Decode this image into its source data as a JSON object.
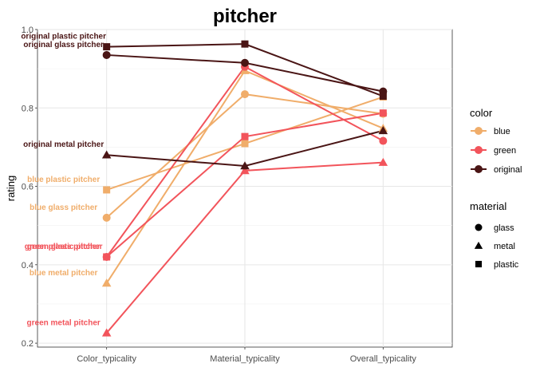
{
  "chart_data": {
    "type": "line",
    "title": "pitcher",
    "xlabel": "",
    "ylabel": "rating",
    "categories": [
      "Color_typicality",
      "Material_typicality",
      "Overall_typicality"
    ],
    "ylim": [
      0.19,
      1.0
    ],
    "yticks": [
      "0.2",
      "0.4",
      "0.6",
      "0.8",
      "1.0"
    ],
    "grid": true,
    "legend_position": "right",
    "colors": {
      "blue": "#F0AD6A",
      "green": "#F2545B",
      "original": "#4A1515"
    },
    "series": [
      {
        "name": "original plastic pitcher",
        "color_group": "original",
        "material": "plastic",
        "label": "original plastic pitcher",
        "values": [
          0.956,
          0.963,
          0.83
        ]
      },
      {
        "name": "original glass pitcher",
        "color_group": "original",
        "material": "glass",
        "label": "original glass pitcher",
        "values": [
          0.935,
          0.915,
          0.842
        ]
      },
      {
        "name": "original metal pitcher",
        "color_group": "original",
        "material": "metal",
        "label": "original metal pitcher",
        "values": [
          0.68,
          0.652,
          0.742
        ]
      },
      {
        "name": "blue plastic pitcher",
        "color_group": "blue",
        "material": "plastic",
        "label": "blue plastic pitcher",
        "values": [
          0.591,
          0.709,
          0.828
        ]
      },
      {
        "name": "blue glass pitcher",
        "color_group": "blue",
        "material": "glass",
        "label": "blue glass pitcher",
        "values": [
          0.52,
          0.835,
          0.785
        ]
      },
      {
        "name": "blue metal pitcher",
        "color_group": "blue",
        "material": "metal",
        "label": "blue metal pitcher",
        "values": [
          0.353,
          0.895,
          0.748
        ]
      },
      {
        "name": "green plastic pitcher",
        "color_group": "green",
        "material": "plastic",
        "label": "green plastic pitcher",
        "values": [
          0.42,
          0.727,
          0.787
        ]
      },
      {
        "name": "green glass pitcher",
        "color_group": "green",
        "material": "glass",
        "label": "green glass pitcher",
        "values": [
          0.42,
          0.905,
          0.716
        ]
      },
      {
        "name": "green metal pitcher",
        "color_group": "green",
        "material": "metal",
        "label": "green metal pitcher",
        "values": [
          0.226,
          0.64,
          0.661
        ]
      }
    ],
    "legend": {
      "color": {
        "title": "color",
        "items": [
          "blue",
          "green",
          "original"
        ]
      },
      "material": {
        "title": "material",
        "items": [
          "glass",
          "metal",
          "plastic"
        ]
      }
    }
  }
}
